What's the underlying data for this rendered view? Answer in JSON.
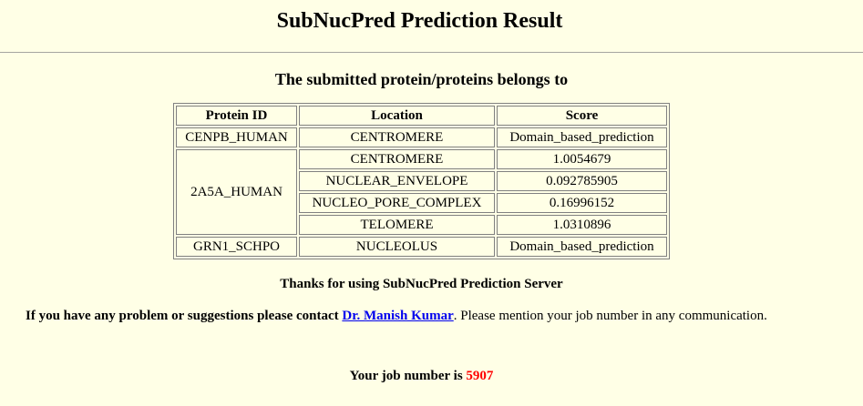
{
  "page": {
    "title": "SubNucPred Prediction Result",
    "subtitle": "The submitted protein/proteins belongs to"
  },
  "table": {
    "headers": {
      "protein_id": "Protein ID",
      "location": "Location",
      "score": "Score"
    },
    "rows": [
      {
        "protein_id": "CENPB_HUMAN",
        "entries": [
          {
            "location": "CENTROMERE",
            "score": "Domain_based_prediction"
          }
        ]
      },
      {
        "protein_id": "2A5A_HUMAN",
        "entries": [
          {
            "location": "CENTROMERE",
            "score": "1.0054679"
          },
          {
            "location": "NUCLEAR_ENVELOPE",
            "score": "0.092785905"
          },
          {
            "location": "NUCLEO_PORE_COMPLEX",
            "score": "0.16996152"
          },
          {
            "location": "TELOMERE",
            "score": "1.0310896"
          }
        ]
      },
      {
        "protein_id": "GRN1_SCHPO",
        "entries": [
          {
            "location": "NUCLEOLUS",
            "score": "Domain_based_prediction"
          }
        ]
      }
    ]
  },
  "footer": {
    "thanks": "Thanks for using SubNucPred Prediction Server",
    "contact_prefix": "If you have any problem or suggestions please contact",
    "contact_link": "Dr. Manish Kumar",
    "contact_suffix": ". Please mention your job number in any communication.",
    "job_label": "Your job number is",
    "job_number": "5907"
  },
  "colors": {
    "background": "#ffffe6",
    "link": "#0000ee",
    "job_number": "#ff0000"
  }
}
